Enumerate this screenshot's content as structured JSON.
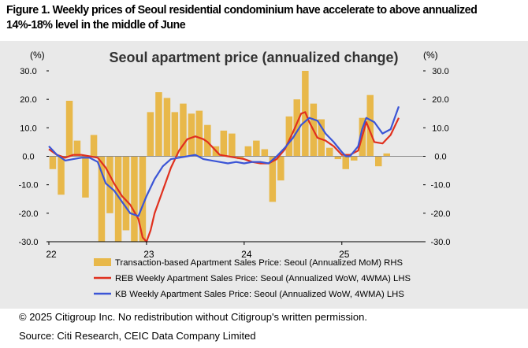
{
  "figure": {
    "caption": "Figure 1. Weekly prices of Seoul residential condominium have accelerate to above annualized 14%-18% level in the middle of June",
    "copyright": "© 2025 Citigroup Inc. No redistribution without Citigroup's written permission.",
    "source": "Source: Citi Research, CEIC Data Company Limited"
  },
  "colors": {
    "background": "#e9e9e9",
    "bars": "#e8b84a",
    "reb_line": "#e0301e",
    "kb_line": "#3b55d6",
    "zero_line": "#888888"
  },
  "chart_data": {
    "type": "bar",
    "title": "Seoul apartment price (annualized change)",
    "ylabel_left": "(%)",
    "ylabel_right": "(%)",
    "ylim": [
      -30,
      30
    ],
    "yticks": [
      "30.0",
      "20.0",
      "10.0",
      "0.0",
      "-10.0",
      "-20.0",
      "-30.0"
    ],
    "ytick_values": [
      30,
      20,
      10,
      0,
      -10,
      -20,
      -30
    ],
    "xlim": [
      2022.0,
      2025.833
    ],
    "xticks": [
      "22",
      "23",
      "24",
      "25"
    ],
    "xtick_values": [
      2022,
      2023,
      2024,
      2025
    ],
    "grid": false,
    "legend_position": "bottom",
    "bars": {
      "name": "Transaction-based Apartment Sales Price: Seoul (Annualized MoM) RHS",
      "x": [
        2022.04,
        2022.125,
        2022.21,
        2022.29,
        2022.375,
        2022.46,
        2022.54,
        2022.625,
        2022.71,
        2022.79,
        2022.875,
        2022.96,
        2023.04,
        2023.125,
        2023.21,
        2023.29,
        2023.375,
        2023.46,
        2023.54,
        2023.625,
        2023.71,
        2023.79,
        2023.875,
        2023.96,
        2024.04,
        2024.125,
        2024.21,
        2024.29,
        2024.375,
        2024.46,
        2024.54,
        2024.625,
        2024.71,
        2024.79,
        2024.875,
        2024.96,
        2025.04,
        2025.125,
        2025.21,
        2025.29,
        2025.375,
        2025.46
      ],
      "values": [
        -4.5,
        -13.5,
        19.5,
        5.5,
        -14.5,
        7.5,
        -30.0,
        -20.0,
        -30.0,
        -26.0,
        -30.0,
        -30.0,
        15.5,
        22.5,
        20.5,
        15.5,
        18.5,
        15.0,
        16.0,
        11.0,
        3.5,
        9.0,
        8.0,
        -1.0,
        3.5,
        5.5,
        2.5,
        -16.0,
        -8.5,
        14.0,
        20.0,
        30.0,
        18.5,
        13.0,
        3.0,
        -1.0,
        -4.5,
        -1.5,
        13.5,
        21.5,
        -3.5,
        1.0
      ]
    },
    "series": [
      {
        "name": "REB Weekly Apartment Sales Price: Seoul (Annualized WoW, 4WMA) LHS",
        "x": [
          2022.0,
          2022.083,
          2022.167,
          2022.25,
          2022.333,
          2022.417,
          2022.5,
          2022.583,
          2022.667,
          2022.75,
          2022.833,
          2022.917,
          2022.96,
          2023.0,
          2023.042,
          2023.083,
          2023.167,
          2023.25,
          2023.333,
          2023.417,
          2023.5,
          2023.583,
          2023.625,
          2023.667,
          2023.75,
          2023.833,
          2023.917,
          2024.0,
          2024.083,
          2024.167,
          2024.25,
          2024.333,
          2024.417,
          2024.5,
          2024.583,
          2024.625,
          2024.667,
          2024.75,
          2024.833,
          2024.917,
          2025.0,
          2025.083,
          2025.167,
          2025.25,
          2025.333,
          2025.417,
          2025.5,
          2025.583
        ],
        "values": [
          2.5,
          0.5,
          -0.5,
          0.5,
          0.5,
          0.0,
          -0.5,
          -4.0,
          -9.5,
          -14.0,
          -17.0,
          -22.0,
          -28.5,
          -30.0,
          -26.0,
          -20.0,
          -12.0,
          -4.0,
          2.0,
          6.0,
          7.0,
          6.0,
          5.0,
          3.5,
          0.5,
          0.0,
          -0.5,
          -1.0,
          -2.0,
          -2.5,
          -2.5,
          -1.0,
          2.5,
          8.5,
          15.0,
          15.5,
          12.0,
          6.5,
          5.5,
          3.5,
          0.5,
          0.5,
          2.0,
          12.0,
          5.0,
          4.5,
          7.5,
          13.5
        ]
      },
      {
        "name": "KB Weekly Apartment Sales Price: Seoul (Annualized WoW, 4WMA) LHS",
        "x": [
          2022.0,
          2022.042,
          2022.083,
          2022.167,
          2022.25,
          2022.333,
          2022.417,
          2022.5,
          2022.583,
          2022.667,
          2022.75,
          2022.833,
          2022.917,
          2023.0,
          2023.083,
          2023.167,
          2023.25,
          2023.333,
          2023.417,
          2023.5,
          2023.583,
          2023.667,
          2023.75,
          2023.833,
          2023.917,
          2024.0,
          2024.083,
          2024.167,
          2024.25,
          2024.333,
          2024.417,
          2024.5,
          2024.583,
          2024.667,
          2024.75,
          2024.833,
          2024.917,
          2025.0,
          2025.042,
          2025.083,
          2025.167,
          2025.208,
          2025.25,
          2025.333,
          2025.417,
          2025.5,
          2025.583
        ],
        "values": [
          3.5,
          2.0,
          0.5,
          -1.5,
          -1.0,
          -0.5,
          -0.5,
          -2.0,
          -9.5,
          -12.0,
          -16.0,
          -20.0,
          -21.0,
          -14.0,
          -8.0,
          -3.5,
          -1.0,
          -0.5,
          0.0,
          0.5,
          -1.0,
          -1.5,
          -2.0,
          -2.5,
          -2.0,
          -2.5,
          -2.0,
          -2.0,
          -2.5,
          0.0,
          3.0,
          6.5,
          11.0,
          13.5,
          12.5,
          8.0,
          5.0,
          1.5,
          0.0,
          0.0,
          3.5,
          9.5,
          13.5,
          12.0,
          8.0,
          9.5,
          17.5
        ]
      }
    ]
  }
}
